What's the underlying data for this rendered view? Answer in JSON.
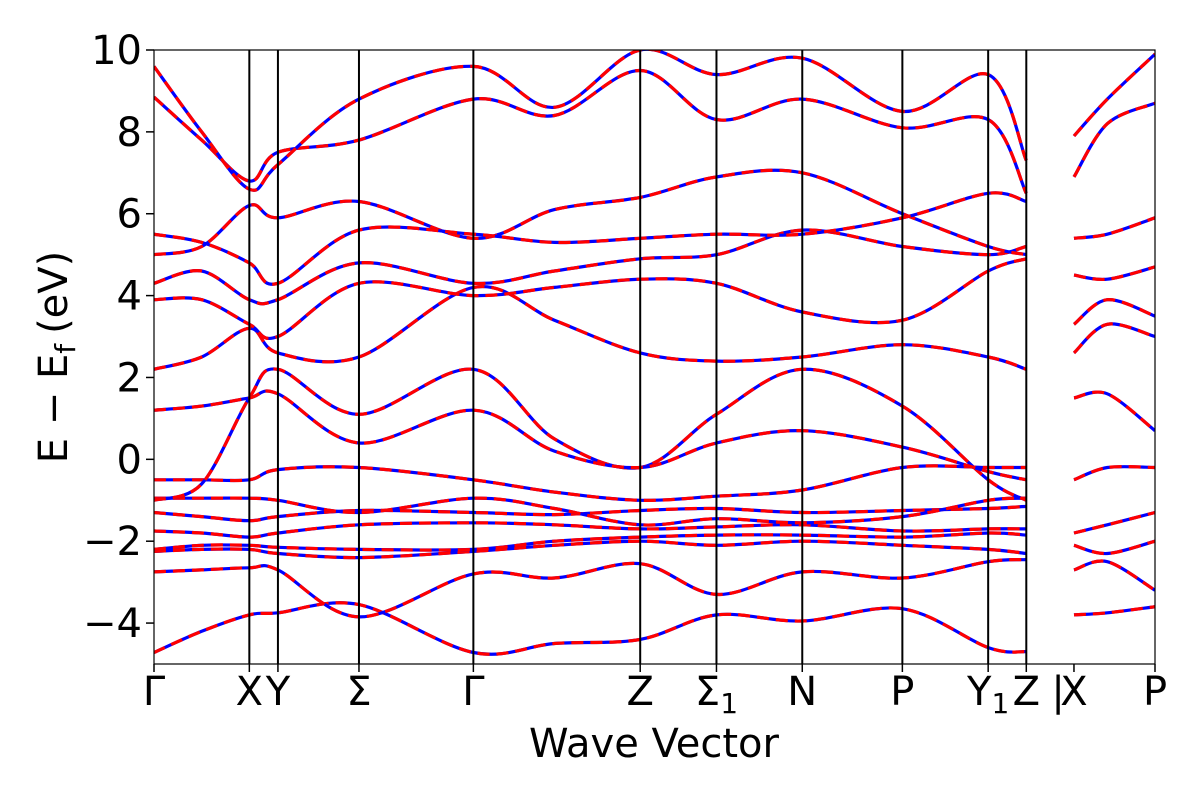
{
  "chart_data": {
    "type": "line",
    "title": "",
    "xlabel": "Wave Vector",
    "ylabel": "E − E",
    "ylabel_subscript": "f",
    "ylabel_unit": "(eV)",
    "ylim": [
      -5,
      10
    ],
    "yticks": [
      -4,
      -2,
      0,
      2,
      4,
      6,
      8,
      10
    ],
    "ytick_labels": [
      "−4",
      "−2",
      "0",
      "2",
      "4",
      "6",
      "8",
      "10"
    ],
    "xlim": [
      0,
      10.5
    ],
    "kpoint_positions": [
      0,
      1.0,
      1.3,
      2.15,
      3.35,
      5.1,
      5.9,
      6.8,
      7.85,
      8.75,
      9.15,
      10.5
    ],
    "kpoint_labels": [
      "Γ",
      "X",
      "Y",
      "Σ",
      "Γ",
      "Z",
      "Σ",
      "N",
      "P",
      "Y",
      "Z",
      "X",
      "P"
    ],
    "kpoint_label_positions": [
      0,
      1.0,
      1.3,
      2.15,
      3.35,
      5.1,
      5.9,
      6.8,
      7.85,
      8.75,
      9.15,
      9.65,
      10.5
    ],
    "kpoint_label_subscripts": [
      "",
      "",
      "",
      "",
      "",
      "",
      "1",
      "",
      "",
      "1",
      "",
      "",
      ""
    ],
    "kpoint_separator_text": "|",
    "series": [
      {
        "color": "#ff0000",
        "style": "solid"
      },
      {
        "color": "#0000ff",
        "style": "dashed"
      }
    ],
    "bands": [
      {
        "x": [
          0,
          0.5,
          1.0,
          1.3,
          2.15,
          3.35,
          4.2,
          5.1,
          5.9,
          6.8,
          7.85,
          8.75,
          9.15
        ],
        "y": [
          -4.72,
          -4.2,
          -3.8,
          -3.75,
          -3.55,
          -4.72,
          -4.5,
          -4.4,
          -3.8,
          -3.95,
          -3.65,
          -4.6,
          -4.7
        ]
      },
      {
        "x": [
          0,
          0.5,
          1.0,
          1.3,
          2.15,
          3.35,
          4.2,
          5.1,
          5.9,
          6.8,
          7.85,
          8.75,
          9.15
        ],
        "y": [
          -2.75,
          -2.7,
          -2.65,
          -2.7,
          -3.85,
          -2.8,
          -2.9,
          -2.55,
          -3.3,
          -2.75,
          -2.9,
          -2.5,
          -2.45
        ]
      },
      {
        "x": [
          0,
          0.5,
          1.0,
          1.3,
          2.15,
          3.35,
          4.2,
          5.1,
          5.9,
          6.8,
          7.85,
          8.75,
          9.15
        ],
        "y": [
          -2.25,
          -2.2,
          -2.2,
          -2.3,
          -2.4,
          -2.25,
          -2.1,
          -2.0,
          -2.1,
          -2.0,
          -2.1,
          -2.2,
          -2.3
        ]
      },
      {
        "x": [
          0,
          0.5,
          1.0,
          1.3,
          2.15,
          3.35,
          4.2,
          5.1,
          5.9,
          6.8,
          7.85,
          8.75,
          9.15
        ],
        "y": [
          -2.2,
          -2.1,
          -2.1,
          -2.15,
          -2.2,
          -2.2,
          -2.0,
          -1.9,
          -1.85,
          -1.85,
          -1.9,
          -1.8,
          -1.85
        ]
      },
      {
        "x": [
          0,
          0.5,
          1.0,
          1.3,
          2.15,
          3.35,
          4.2,
          5.1,
          5.9,
          6.8,
          7.85,
          8.75,
          9.15
        ],
        "y": [
          -1.75,
          -1.8,
          -1.9,
          -1.8,
          -1.6,
          -1.55,
          -1.6,
          -1.7,
          -1.65,
          -1.6,
          -1.75,
          -1.7,
          -1.7
        ]
      },
      {
        "x": [
          0,
          0.5,
          1.0,
          1.3,
          2.15,
          3.35,
          4.2,
          5.1,
          5.9,
          6.8,
          7.85,
          8.75,
          9.15
        ],
        "y": [
          -1.3,
          -1.4,
          -1.5,
          -1.4,
          -1.25,
          -1.3,
          -1.35,
          -1.25,
          -1.2,
          -1.3,
          -1.25,
          -1.2,
          -1.15
        ]
      },
      {
        "x": [
          0,
          0.5,
          1.0,
          1.3,
          2.15,
          3.35,
          4.2,
          5.1,
          5.9,
          6.8,
          7.85,
          8.75,
          9.15
        ],
        "y": [
          -0.95,
          -0.95,
          -0.95,
          -1.0,
          -1.3,
          -0.95,
          -1.2,
          -1.6,
          -1.45,
          -1.55,
          -1.4,
          -1.0,
          -0.95
        ]
      },
      {
        "x": [
          0,
          0.5,
          1.0,
          1.3,
          2.15,
          3.35,
          4.2,
          5.1,
          5.9,
          6.8,
          7.85,
          8.75,
          9.15
        ],
        "y": [
          -0.5,
          -0.5,
          -0.5,
          -0.25,
          -0.2,
          -0.5,
          -0.8,
          -1.0,
          -0.9,
          -0.75,
          -0.2,
          -0.2,
          -0.2
        ]
      },
      {
        "x": [
          0,
          0.5,
          1.0,
          1.3,
          2.15,
          3.35,
          4.2,
          5.1,
          5.9,
          6.8,
          7.85,
          8.75,
          9.15
        ],
        "y": [
          -1.0,
          -0.6,
          1.5,
          2.2,
          1.1,
          2.2,
          0.5,
          -0.2,
          1.1,
          2.2,
          1.3,
          -0.5,
          -1.0
        ]
      },
      {
        "x": [
          0,
          0.5,
          1.0,
          1.3,
          2.15,
          3.35,
          4.2,
          5.1,
          5.9,
          6.8,
          7.85,
          8.75,
          9.15
        ],
        "y": [
          1.2,
          1.3,
          1.5,
          1.6,
          0.4,
          1.2,
          0.2,
          -0.2,
          0.4,
          0.7,
          0.3,
          -0.3,
          -0.5
        ]
      },
      {
        "x": [
          0,
          0.5,
          1.0,
          1.3,
          2.15,
          3.35,
          4.2,
          5.1,
          5.9,
          6.8,
          7.85,
          8.75,
          9.15
        ],
        "y": [
          2.2,
          2.5,
          3.2,
          2.6,
          2.5,
          4.2,
          3.4,
          2.6,
          2.4,
          2.5,
          2.8,
          2.5,
          2.2
        ]
      },
      {
        "x": [
          0,
          0.5,
          1.0,
          1.3,
          2.15,
          3.35,
          4.2,
          5.1,
          5.9,
          6.8,
          7.85,
          8.75,
          9.15
        ],
        "y": [
          3.9,
          3.9,
          3.3,
          3.0,
          4.3,
          4.0,
          4.2,
          4.4,
          4.3,
          3.6,
          3.4,
          4.6,
          4.9
        ]
      },
      {
        "x": [
          0,
          0.5,
          1.0,
          1.3,
          2.15,
          3.35,
          4.2,
          5.1,
          5.9,
          6.8,
          7.85,
          8.75,
          9.15
        ],
        "y": [
          4.3,
          4.6,
          3.9,
          3.9,
          4.8,
          4.3,
          4.6,
          4.9,
          5.0,
          5.6,
          5.2,
          5.0,
          5.2
        ]
      },
      {
        "x": [
          0,
          0.5,
          1.0,
          1.3,
          2.15,
          3.35,
          4.2,
          5.1,
          5.9,
          6.8,
          7.85,
          8.75,
          9.15
        ],
        "y": [
          5.0,
          5.2,
          6.2,
          5.9,
          6.3,
          5.4,
          6.1,
          6.4,
          6.9,
          7.0,
          6.0,
          5.2,
          5.0
        ]
      },
      {
        "x": [
          0,
          0.5,
          1.0,
          1.3,
          2.15,
          3.35,
          4.2,
          5.1,
          5.9,
          6.8,
          7.85,
          8.75,
          9.15
        ],
        "y": [
          5.5,
          5.3,
          4.8,
          4.3,
          5.6,
          5.5,
          5.3,
          5.4,
          5.5,
          5.5,
          5.9,
          6.5,
          6.3
        ]
      },
      {
        "x": [
          0,
          0.5,
          1.0,
          1.3,
          2.15,
          3.35,
          4.2,
          5.1,
          5.9,
          6.8,
          7.85,
          8.75,
          9.15
        ],
        "y": [
          8.85,
          7.8,
          6.8,
          7.5,
          7.8,
          8.8,
          8.4,
          9.5,
          8.3,
          8.8,
          8.1,
          8.3,
          6.5
        ]
      },
      {
        "x": [
          0,
          0.5,
          1.0,
          1.3,
          2.15,
          3.35,
          4.2,
          5.1,
          5.9,
          6.8,
          7.85,
          8.75,
          9.15
        ],
        "y": [
          9.6,
          8.0,
          6.6,
          7.2,
          8.8,
          9.6,
          8.6,
          10.0,
          9.4,
          9.8,
          8.5,
          9.4,
          7.3
        ]
      },
      {
        "x": [
          9.65,
          10.0,
          10.5
        ],
        "y": [
          -3.8,
          -3.75,
          -3.6
        ]
      },
      {
        "x": [
          9.65,
          10.0,
          10.5
        ],
        "y": [
          -2.7,
          -2.5,
          -3.2
        ]
      },
      {
        "x": [
          9.65,
          10.0,
          10.5
        ],
        "y": [
          -2.1,
          -2.3,
          -2.0
        ]
      },
      {
        "x": [
          9.65,
          10.0,
          10.5
        ],
        "y": [
          -1.8,
          -1.6,
          -1.3
        ]
      },
      {
        "x": [
          9.65,
          10.0,
          10.5
        ],
        "y": [
          -0.5,
          -0.2,
          -0.2
        ]
      },
      {
        "x": [
          9.65,
          10.0,
          10.5
        ],
        "y": [
          1.5,
          1.6,
          0.7
        ]
      },
      {
        "x": [
          9.65,
          10.0,
          10.5
        ],
        "y": [
          2.6,
          3.3,
          3.0
        ]
      },
      {
        "x": [
          9.65,
          10.0,
          10.5
        ],
        "y": [
          3.3,
          3.9,
          3.5
        ]
      },
      {
        "x": [
          9.65,
          10.0,
          10.5
        ],
        "y": [
          4.5,
          4.4,
          4.7
        ]
      },
      {
        "x": [
          9.65,
          10.0,
          10.5
        ],
        "y": [
          5.4,
          5.5,
          5.9
        ]
      },
      {
        "x": [
          9.65,
          10.0,
          10.5
        ],
        "y": [
          6.9,
          8.2,
          8.7
        ]
      },
      {
        "x": [
          9.65,
          10.0,
          10.5
        ],
        "y": [
          7.9,
          8.8,
          9.9
        ]
      }
    ]
  }
}
